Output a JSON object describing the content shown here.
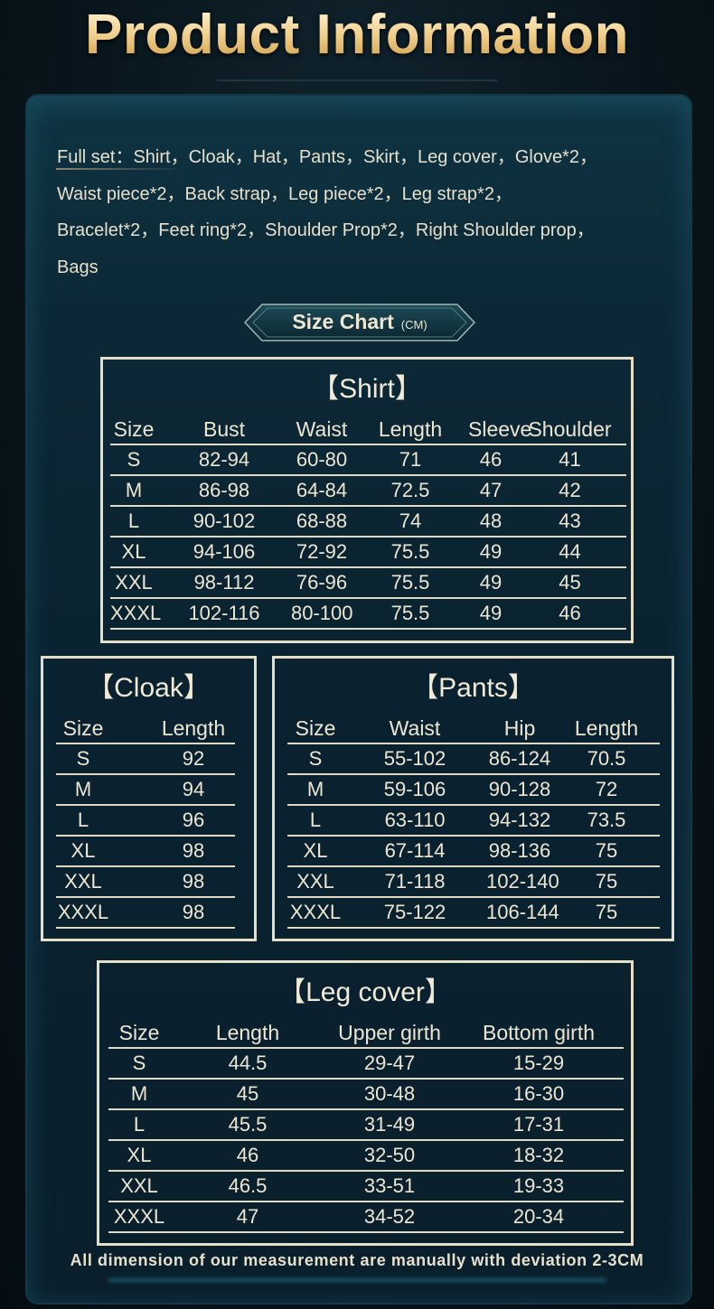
{
  "header": {
    "title": "Product Information"
  },
  "intro": {
    "lines": [
      "Full set：Shirt，Cloak，Hat，Pants，Skirt，Leg cover，Glove*2，",
      "Waist piece*2，Back strap，Leg piece*2，Leg strap*2，",
      "Bracelet*2，Feet ring*2，Shoulder Prop*2，Right Shoulder prop，",
      "Bags"
    ]
  },
  "size_chart": {
    "label": "Size Chart",
    "unit": "(CM)"
  },
  "tables": {
    "shirt": {
      "title": "【Shirt】",
      "columns": [
        "Size",
        "Bust",
        "Waist",
        "Length",
        "Sleeve",
        "Shoulder"
      ],
      "rows": [
        [
          "S",
          "82-94",
          "60-80",
          "71",
          "46",
          "41"
        ],
        [
          "M",
          "86-98",
          "64-84",
          "72.5",
          "47",
          "42"
        ],
        [
          "L",
          "90-102",
          "68-88",
          "74",
          "48",
          "43"
        ],
        [
          "XL",
          "94-106",
          "72-92",
          "75.5",
          "49",
          "44"
        ],
        [
          "XXL",
          "98-112",
          "76-96",
          "75.5",
          "49",
          "45"
        ],
        [
          "XXXL",
          "102-116",
          "80-100",
          "75.5",
          "49",
          "46"
        ]
      ]
    },
    "cloak": {
      "title": "【Cloak】",
      "columns": [
        "Size",
        "Length"
      ],
      "rows": [
        [
          "S",
          "92"
        ],
        [
          "M",
          "94"
        ],
        [
          "L",
          "96"
        ],
        [
          "XL",
          "98"
        ],
        [
          "XXL",
          "98"
        ],
        [
          "XXXL",
          "98"
        ]
      ]
    },
    "pants": {
      "title": "【Pants】",
      "columns": [
        "Size",
        "Waist",
        "Hip",
        "Length"
      ],
      "rows": [
        [
          "S",
          "55-102",
          "86-124",
          "70.5"
        ],
        [
          "M",
          "59-106",
          "90-128",
          "72"
        ],
        [
          "L",
          "63-110",
          "94-132",
          "73.5"
        ],
        [
          "XL",
          "67-114",
          "98-136",
          "75"
        ],
        [
          "XXL",
          "71-118",
          "102-140",
          "75"
        ],
        [
          "XXXL",
          "75-122",
          "106-144",
          "75"
        ]
      ]
    },
    "legcover": {
      "title": "【Leg cover】",
      "columns": [
        "Size",
        "Length",
        "Upper girth",
        "Bottom girth"
      ],
      "rows": [
        [
          "S",
          "44.5",
          "29-47",
          "15-29"
        ],
        [
          "M",
          "45",
          "30-48",
          "16-30"
        ],
        [
          "L",
          "45.5",
          "31-49",
          "17-31"
        ],
        [
          "XL",
          "46",
          "32-50",
          "18-32"
        ],
        [
          "XXL",
          "46.5",
          "33-51",
          "19-33"
        ],
        [
          "XXXL",
          "47",
          "34-52",
          "20-34"
        ]
      ]
    }
  },
  "footer": {
    "note": "All dimension of our measurement are manually with deviation 2-3CM"
  },
  "colors": {
    "title_gold": "#f0cf8c",
    "panel": "#0c2836",
    "border_cream": "#e6dfc8"
  }
}
